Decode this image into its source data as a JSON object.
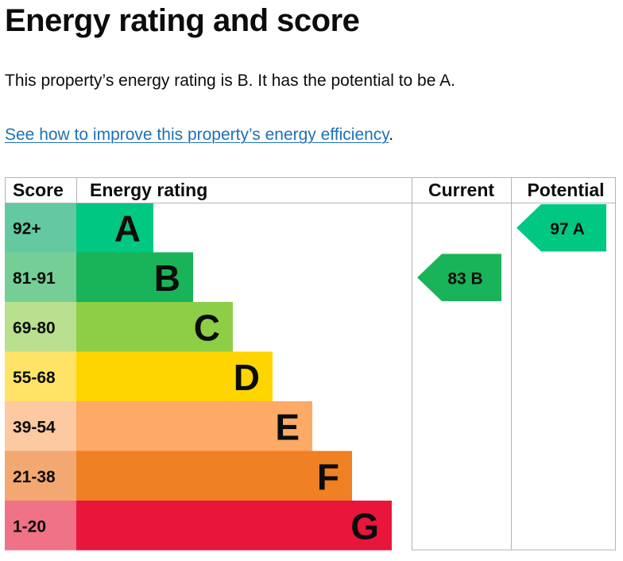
{
  "page": {
    "title": "Energy rating and score",
    "summary": "This property’s energy rating is B. It has the potential to be A.",
    "improve_link": "See how to improve this property’s energy efficiency",
    "improve_suffix": "."
  },
  "chart_data": {
    "type": "bar",
    "headers": {
      "score": "Score",
      "rating": "Energy rating",
      "current": "Current",
      "potential": "Potential"
    },
    "bands": [
      {
        "letter": "A",
        "range": "92+",
        "color": "#00c781",
        "score_color": "#64c9a0"
      },
      {
        "letter": "B",
        "range": "81-91",
        "color": "#19b459",
        "score_color": "#75ce96"
      },
      {
        "letter": "C",
        "range": "69-80",
        "color": "#8dce46",
        "score_color": "#b9e08e"
      },
      {
        "letter": "D",
        "range": "55-68",
        "color": "#ffd500",
        "score_color": "#ffe366"
      },
      {
        "letter": "E",
        "range": "39-54",
        "color": "#fcaa65",
        "score_color": "#fdc9a0"
      },
      {
        "letter": "F",
        "range": "21-38",
        "color": "#ef8023",
        "score_color": "#f4a871"
      },
      {
        "letter": "G",
        "range": "1-20",
        "color": "#e9153b",
        "score_color": "#f07287"
      }
    ],
    "current": {
      "score": 83,
      "letter": "B",
      "label": "83  B",
      "color": "#19b459"
    },
    "potential": {
      "score": 97,
      "letter": "A",
      "label": "97  A",
      "color": "#00c781"
    }
  }
}
